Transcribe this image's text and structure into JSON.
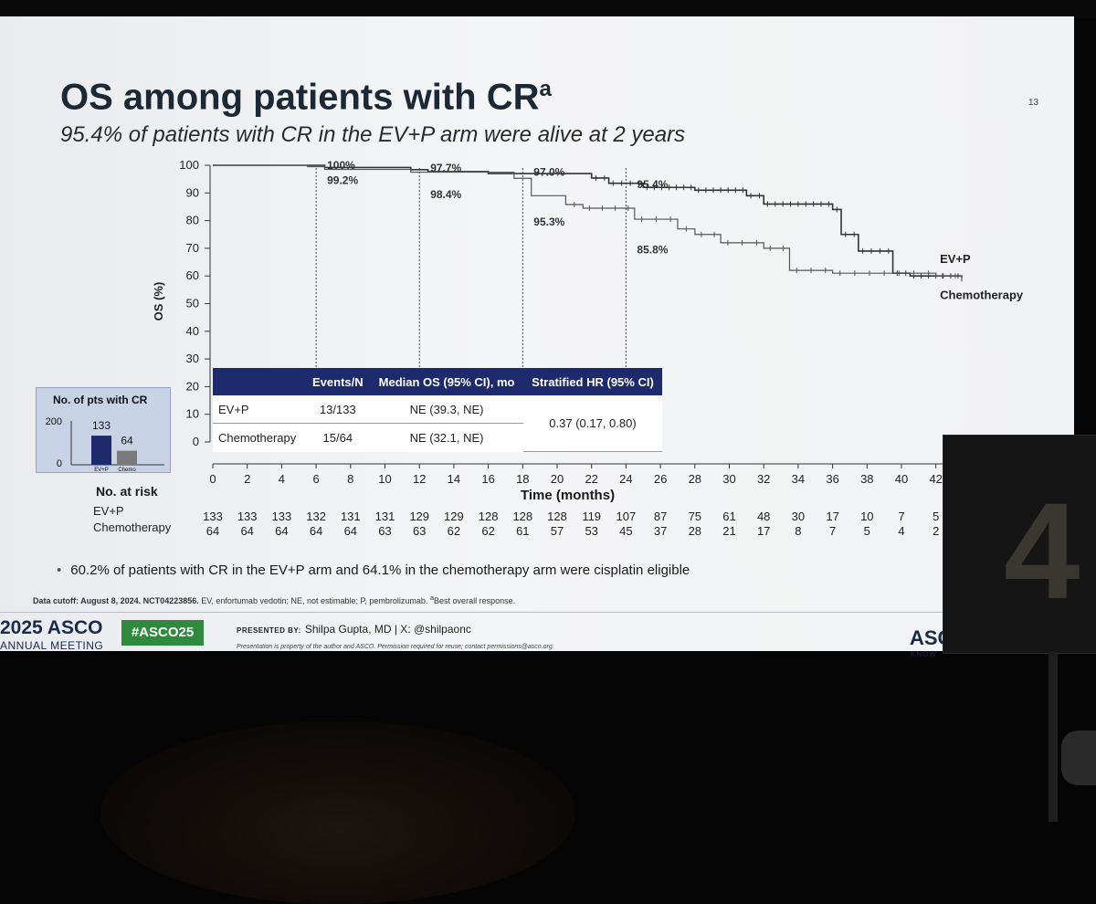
{
  "slide": {
    "title": "OS among patients with CR",
    "title_superscript": "a",
    "subtitle": "95.4% of patients with CR in the EV+P arm were alive at 2 years",
    "slide_number": "13"
  },
  "chart_data": {
    "type": "line",
    "subtype": "kaplan-meier",
    "ylabel": "OS (%)",
    "xlabel": "Time (months)",
    "ylim": [
      0,
      100
    ],
    "xlim": [
      0,
      42
    ],
    "yticks": [
      "0",
      "10",
      "20",
      "30",
      "40",
      "50",
      "60",
      "70",
      "80",
      "90",
      "100"
    ],
    "xticks": [
      "0",
      "2",
      "4",
      "6",
      "8",
      "10",
      "12",
      "14",
      "16",
      "18",
      "20",
      "22",
      "24",
      "26",
      "28",
      "30",
      "32",
      "34",
      "36",
      "38",
      "40",
      "42"
    ],
    "series": [
      {
        "name": "EV+P",
        "color": "#333333",
        "points": [
          [
            0,
            100
          ],
          [
            6.5,
            99.2
          ],
          [
            11.5,
            98.4
          ],
          [
            12.5,
            97.7
          ],
          [
            16,
            97.0
          ],
          [
            22,
            95.4
          ],
          [
            23,
            93.5
          ],
          [
            25,
            92
          ],
          [
            28,
            91
          ],
          [
            31,
            89
          ],
          [
            32,
            86
          ],
          [
            36,
            84
          ],
          [
            36.5,
            75
          ],
          [
            37.5,
            69
          ],
          [
            39.5,
            61
          ],
          [
            40.5,
            60
          ],
          [
            43.5,
            59.5
          ]
        ]
      },
      {
        "name": "Chemotherapy",
        "color": "#555555",
        "points": [
          [
            0,
            100
          ],
          [
            5.5,
            99.5
          ],
          [
            6.5,
            98.5
          ],
          [
            11.5,
            97.5
          ],
          [
            17.5,
            95.3
          ],
          [
            18.5,
            89
          ],
          [
            20.5,
            85.8
          ],
          [
            21.5,
            84.5
          ],
          [
            24.5,
            80.5
          ],
          [
            27,
            77
          ],
          [
            28,
            75
          ],
          [
            29.5,
            72
          ],
          [
            32,
            70
          ],
          [
            33.5,
            62
          ],
          [
            36,
            61
          ],
          [
            42,
            60
          ],
          [
            43.5,
            58
          ]
        ]
      }
    ],
    "annotations": [
      {
        "x": 6,
        "text": "100%",
        "y": 100
      },
      {
        "x": 6,
        "text": "99.2%",
        "y": 94.5
      },
      {
        "x": 12,
        "text": "97.7%",
        "y": 99
      },
      {
        "x": 12,
        "text": "98.4%",
        "y": 89.5
      },
      {
        "x": 18,
        "text": "97.0%",
        "y": 97.5
      },
      {
        "x": 18,
        "text": "95.3%",
        "y": 79.5
      },
      {
        "x": 24,
        "text": "95.4%",
        "y": 93
      },
      {
        "x": 24,
        "text": "85.8%",
        "y": 69.5
      }
    ],
    "series_labels": [
      {
        "text": "EV+P",
        "x": 42.5,
        "y": 66
      },
      {
        "text": "Chemotherapy",
        "x": 42.5,
        "y": 53
      }
    ],
    "landmark_x": [
      6,
      12,
      18,
      24
    ]
  },
  "stats_table": {
    "headers": [
      "",
      "Events/N",
      "Median OS (95% CI), mo",
      "Stratified HR (95% CI)"
    ],
    "rows": [
      {
        "arm": "EV+P",
        "events": "13/133",
        "median": "NE (39.3, NE)"
      },
      {
        "arm": "Chemotherapy",
        "events": "15/64",
        "median": "NE (32.1, NE)"
      }
    ],
    "hr": "0.37 (0.17, 0.80)"
  },
  "inset_chart": {
    "title": "No. of pts with CR",
    "yticks": [
      "0",
      "200"
    ],
    "ymax": 200,
    "bars": [
      {
        "label": "EV+P",
        "value": 133,
        "color": "#1d2b6e"
      },
      {
        "label": "Chemo",
        "value": 64,
        "color": "#7a7a7a"
      }
    ]
  },
  "risk_table": {
    "title": "No. at risk",
    "rows": [
      {
        "label": "EV+P",
        "values": [
          "133",
          "133",
          "133",
          "132",
          "131",
          "131",
          "129",
          "129",
          "128",
          "128",
          "128",
          "119",
          "107",
          "87",
          "75",
          "61",
          "48",
          "30",
          "17",
          "10",
          "7",
          "5"
        ]
      },
      {
        "label": "Chemotherapy",
        "values": [
          "64",
          "64",
          "64",
          "64",
          "64",
          "63",
          "63",
          "62",
          "62",
          "61",
          "57",
          "53",
          "45",
          "37",
          "28",
          "21",
          "17",
          "8",
          "7",
          "5",
          "4",
          "2"
        ]
      }
    ]
  },
  "bullet": "60.2% of patients with CR in the EV+P arm and 64.1% in the chemotherapy arm were cisplatin eligible",
  "footnote": {
    "bold": "Data cutoff: August 8, 2024. NCT04223856.",
    "text": " EV, enfortumab vedotin; NE, not estimable; P, pembrolizumab. ",
    "sup": "a",
    "text2": "Best overall response."
  },
  "footer": {
    "year": "2025 ASCO",
    "meeting": "ANNUAL MEETING",
    "hashtag": "#ASCO25",
    "presented_label": "PRESENTED BY:",
    "presenter": "Shilpa Gupta, MD | X: @shilpaonc",
    "disclaimer": "Presentation is property of the author and ASCO. Permission required for reuse; contact permissions@asco.org.",
    "logo_right": "ASC",
    "logo_right_sub": "KNOW"
  },
  "board_number": "4"
}
